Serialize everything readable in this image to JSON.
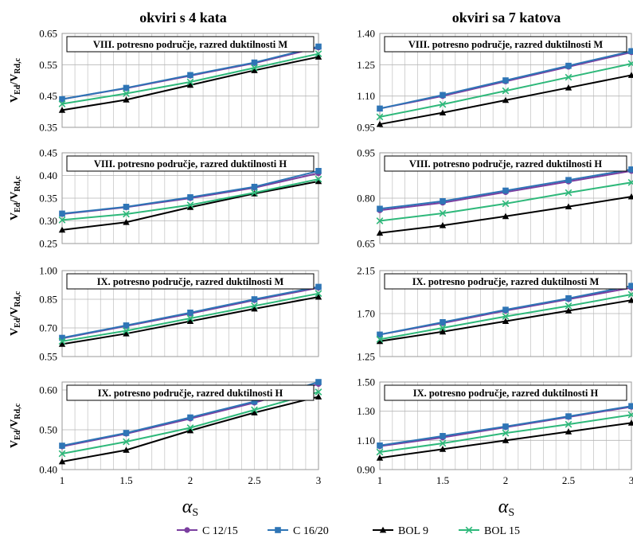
{
  "column_titles": [
    "okviri s 4 kata",
    "okviri sa 7 katova"
  ],
  "xaxis_label": "α",
  "xaxis_label_sub": "S",
  "yaxis_label": "V",
  "yaxis_label_sub1": "Ed",
  "yaxis_label_sep": "/V",
  "yaxis_label_sub2": "Rd,c",
  "legend": [
    {
      "name": "C 12/15",
      "color": "#7b3fa0",
      "marker": "circle"
    },
    {
      "name": "C 16/20",
      "color": "#2e75b6",
      "marker": "square"
    },
    {
      "name": "BOL 9",
      "color": "#000000",
      "marker": "triangle"
    },
    {
      "name": "BOL 15",
      "color": "#2eb87a",
      "marker": "x"
    }
  ],
  "chart_data": [
    {
      "type": "line",
      "title": "VIII. potresno područje, razred duktilnosti M",
      "x": [
        1,
        1.5,
        2,
        2.5,
        3
      ],
      "xlim": [
        1,
        3
      ],
      "xticks": [
        "1",
        "1.5",
        "2",
        "2.5",
        "3"
      ],
      "ylim": [
        0.35,
        0.65
      ],
      "yticks": [
        "0.35",
        "0.45",
        "0.55",
        "0.65"
      ],
      "series": [
        {
          "name": "C 12/15",
          "values": [
            0.44,
            0.475,
            0.515,
            0.555,
            0.605
          ]
        },
        {
          "name": "C 16/20",
          "values": [
            0.44,
            0.476,
            0.517,
            0.557,
            0.608
          ]
        },
        {
          "name": "BOL 9",
          "values": [
            0.405,
            0.438,
            0.485,
            0.532,
            0.575
          ]
        },
        {
          "name": "BOL 15",
          "values": [
            0.425,
            0.458,
            0.495,
            0.54,
            0.585
          ]
        }
      ]
    },
    {
      "type": "line",
      "title": "VIII. potresno područje, razred duktilnosti M",
      "x": [
        1,
        1.5,
        2,
        2.5,
        3
      ],
      "xlim": [
        1,
        3
      ],
      "xticks": [
        "1",
        "1.5",
        "2",
        "2.5",
        "3"
      ],
      "ylim": [
        0.95,
        1.4
      ],
      "yticks": [
        "0.95",
        "1.10",
        "1.25",
        "1.40"
      ],
      "series": [
        {
          "name": "C 12/15",
          "values": [
            1.04,
            1.1,
            1.17,
            1.24,
            1.31
          ]
        },
        {
          "name": "C 16/20",
          "values": [
            1.04,
            1.105,
            1.175,
            1.245,
            1.315
          ]
        },
        {
          "name": "BOL 9",
          "values": [
            0.965,
            1.02,
            1.08,
            1.14,
            1.2
          ]
        },
        {
          "name": "BOL 15",
          "values": [
            1.0,
            1.06,
            1.125,
            1.19,
            1.255
          ]
        }
      ]
    },
    {
      "type": "line",
      "title": "VIII. potresno područje, razred duktilnosti H",
      "x": [
        1,
        1.5,
        2,
        2.5,
        3
      ],
      "xlim": [
        1,
        3
      ],
      "xticks": [
        "1",
        "1.5",
        "2",
        "2.5",
        "3"
      ],
      "ylim": [
        0.25,
        0.45
      ],
      "yticks": [
        "0.25",
        "0.30",
        "0.35",
        "0.40",
        "0.45"
      ],
      "series": [
        {
          "name": "C 12/15",
          "values": [
            0.315,
            0.33,
            0.35,
            0.373,
            0.405
          ]
        },
        {
          "name": "C 16/20",
          "values": [
            0.316,
            0.331,
            0.352,
            0.375,
            0.41
          ]
        },
        {
          "name": "BOL 9",
          "values": [
            0.28,
            0.297,
            0.33,
            0.36,
            0.387
          ]
        },
        {
          "name": "BOL 15",
          "values": [
            0.302,
            0.315,
            0.335,
            0.362,
            0.392
          ]
        }
      ]
    },
    {
      "type": "line",
      "title": "VIII. potresno područje, razred duktilnosti H",
      "x": [
        1,
        1.5,
        2,
        2.5,
        3
      ],
      "xlim": [
        1,
        3
      ],
      "xticks": [
        "1",
        "1.5",
        "2",
        "2.5",
        "3"
      ],
      "ylim": [
        0.65,
        0.95
      ],
      "yticks": [
        "0.65",
        "0.80",
        "0.95"
      ],
      "series": [
        {
          "name": "C 12/15",
          "values": [
            0.76,
            0.785,
            0.82,
            0.855,
            0.89
          ]
        },
        {
          "name": "C 16/20",
          "values": [
            0.765,
            0.79,
            0.825,
            0.86,
            0.895
          ]
        },
        {
          "name": "BOL 9",
          "values": [
            0.685,
            0.71,
            0.74,
            0.772,
            0.805
          ]
        },
        {
          "name": "BOL 15",
          "values": [
            0.725,
            0.75,
            0.782,
            0.818,
            0.852
          ]
        }
      ]
    },
    {
      "type": "line",
      "title": "IX. potresno područje, razred duktilnosti M",
      "x": [
        1,
        1.5,
        2,
        2.5,
        3
      ],
      "xlim": [
        1,
        3
      ],
      "xticks": [
        "1",
        "1.5",
        "2",
        "2.5",
        "3"
      ],
      "ylim": [
        0.55,
        1.0
      ],
      "yticks": [
        "0.55",
        "0.70",
        "0.85",
        "1.00"
      ],
      "series": [
        {
          "name": "C 12/15",
          "values": [
            0.645,
            0.71,
            0.775,
            0.845,
            0.91
          ]
        },
        {
          "name": "C 16/20",
          "values": [
            0.648,
            0.713,
            0.78,
            0.85,
            0.915
          ]
        },
        {
          "name": "BOL 9",
          "values": [
            0.615,
            0.67,
            0.735,
            0.8,
            0.862
          ]
        },
        {
          "name": "BOL 15",
          "values": [
            0.63,
            0.685,
            0.75,
            0.815,
            0.88
          ]
        }
      ]
    },
    {
      "type": "line",
      "title": "IX. potresno područje, razred duktilnosti M",
      "x": [
        1,
        1.5,
        2,
        2.5,
        3
      ],
      "xlim": [
        1,
        3
      ],
      "xticks": [
        "1",
        "1.5",
        "2",
        "2.5",
        "3"
      ],
      "ylim": [
        1.25,
        2.15
      ],
      "yticks": [
        "1.25",
        "1.70",
        "2.15"
      ],
      "series": [
        {
          "name": "C 12/15",
          "values": [
            1.48,
            1.6,
            1.73,
            1.85,
            1.97
          ]
        },
        {
          "name": "C 16/20",
          "values": [
            1.48,
            1.61,
            1.74,
            1.86,
            1.99
          ]
        },
        {
          "name": "BOL 9",
          "values": [
            1.41,
            1.51,
            1.62,
            1.73,
            1.84
          ]
        },
        {
          "name": "BOL 15",
          "values": [
            1.43,
            1.55,
            1.67,
            1.78,
            1.9
          ]
        }
      ]
    },
    {
      "type": "line",
      "title": "IX. potresno područje, razred duktilnosti H",
      "x": [
        1,
        1.5,
        2,
        2.5,
        3
      ],
      "xlim": [
        1,
        3
      ],
      "xticks": [
        "1",
        "1.5",
        "2",
        "2.5",
        "3"
      ],
      "ylim": [
        0.4,
        0.62
      ],
      "yticks": [
        "0.40",
        "0.50",
        "0.60"
      ],
      "series": [
        {
          "name": "C 12/15",
          "values": [
            0.458,
            0.49,
            0.528,
            0.568,
            0.615
          ]
        },
        {
          "name": "C 16/20",
          "values": [
            0.46,
            0.492,
            0.531,
            0.571,
            0.62
          ]
        },
        {
          "name": "BOL 9",
          "values": [
            0.42,
            0.449,
            0.498,
            0.543,
            0.583
          ]
        },
        {
          "name": "BOL 15",
          "values": [
            0.44,
            0.47,
            0.505,
            0.55,
            0.595
          ]
        }
      ]
    },
    {
      "type": "line",
      "title": "IX. potresno područje, razred duktilnosti H",
      "x": [
        1,
        1.5,
        2,
        2.5,
        3
      ],
      "xlim": [
        1,
        3
      ],
      "xticks": [
        "1",
        "1.5",
        "2",
        "2.5",
        "3"
      ],
      "ylim": [
        0.9,
        1.5
      ],
      "yticks": [
        "0.90",
        "1.10",
        "1.30",
        "1.50"
      ],
      "series": [
        {
          "name": "C 12/15",
          "values": [
            1.06,
            1.12,
            1.19,
            1.26,
            1.33
          ]
        },
        {
          "name": "C 16/20",
          "values": [
            1.065,
            1.13,
            1.195,
            1.265,
            1.335
          ]
        },
        {
          "name": "BOL 9",
          "values": [
            0.98,
            1.04,
            1.1,
            1.16,
            1.22
          ]
        },
        {
          "name": "BOL 15",
          "values": [
            1.02,
            1.08,
            1.15,
            1.21,
            1.275
          ]
        }
      ]
    }
  ]
}
